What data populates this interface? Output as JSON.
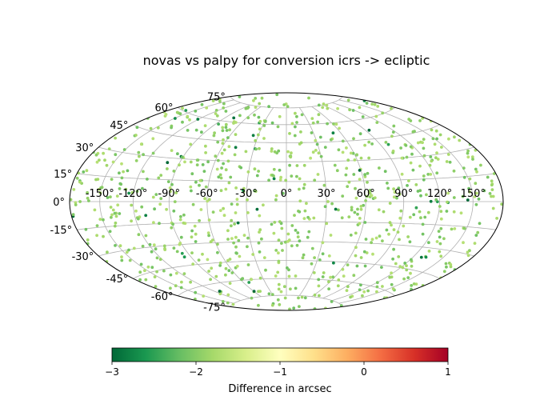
{
  "chart_data": {
    "type": "scatter",
    "projection": "aitoff",
    "title": "novas vs palpy for conversion icrs -> ecliptic",
    "lon_ticks": [
      "-150°",
      "-120°",
      "-90°",
      "-60°",
      "-30°",
      "0°",
      "30°",
      "60°",
      "90°",
      "120°",
      "150°"
    ],
    "lat_ticks": [
      "-75°",
      "-60°",
      "-45°",
      "-30°",
      "-15°",
      "0°",
      "15°",
      "30°",
      "45°",
      "60°",
      "75°"
    ],
    "grid": true,
    "colormap": "RdYlGn_r",
    "colorbar": {
      "label": "Difference in arcsec",
      "min": -3,
      "max": 1,
      "ticks": [
        "−3",
        "−2",
        "−1",
        "0",
        "1"
      ],
      "tick_values": [
        -3,
        -2,
        -1,
        0,
        1
      ],
      "placement": "bottom"
    },
    "points": {
      "count": 900,
      "lon_range_deg": [
        -180,
        180
      ],
      "lat_range_deg": [
        -90,
        90
      ],
      "value_range": [
        -3.0,
        -1.5
      ],
      "typical_value": -1.9
    }
  }
}
